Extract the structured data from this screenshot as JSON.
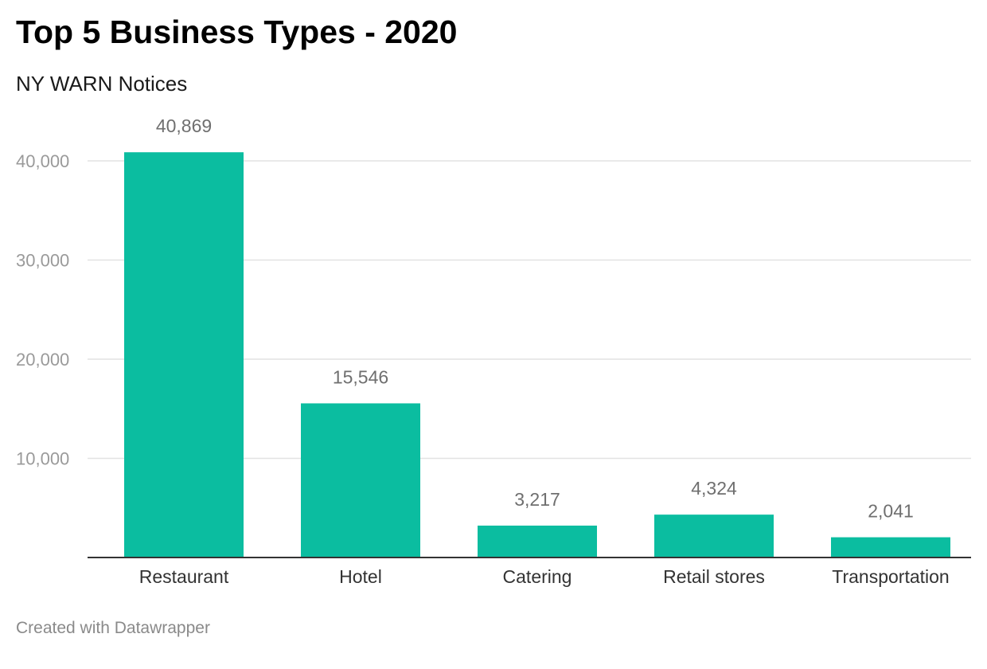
{
  "chart_data": {
    "type": "bar",
    "title": "Top 5 Business Types - 2020",
    "subtitle": "NY WARN Notices",
    "categories": [
      "Restaurant",
      "Hotel",
      "Catering",
      "Retail stores",
      "Transportation"
    ],
    "values": [
      40869,
      15546,
      3217,
      4324,
      2041
    ],
    "value_labels": [
      "40,869",
      "15,546",
      "3,217",
      "4,324",
      "2,041"
    ],
    "y_ticks": [
      10000,
      20000,
      30000,
      40000
    ],
    "y_tick_labels": [
      "10,000",
      "20,000",
      "30,000",
      "40,000"
    ],
    "ylim": [
      0,
      40000
    ],
    "grid": true,
    "bar_color": "#0bbda0",
    "xlabel": "",
    "ylabel": ""
  },
  "footer": {
    "credit": "Created with Datawrapper"
  }
}
